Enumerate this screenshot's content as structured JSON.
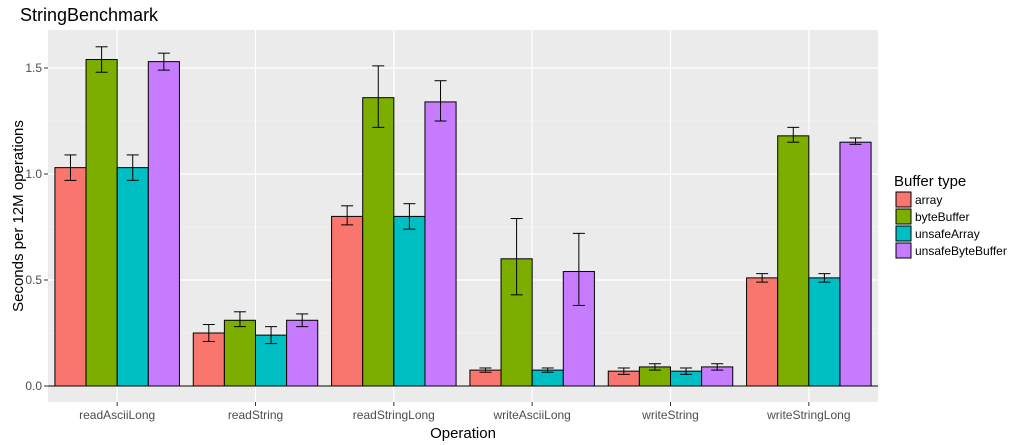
{
  "chart_data": {
    "type": "bar",
    "title": "StringBenchmark",
    "xlabel": "Operation",
    "ylabel": "Seconds per 12M operations",
    "ylim": [
      0,
      1.6
    ],
    "yticks": [
      "0.0",
      "0.5",
      "1.0",
      "1.5"
    ],
    "ytick_values": [
      0,
      0.5,
      1.0,
      1.5
    ],
    "categories": [
      "readAsciiLong",
      "readString",
      "readStringLong",
      "writeAsciiLong",
      "writeString",
      "writeStringLong"
    ],
    "legend_title": "Buffer type",
    "legend_position": "right",
    "grid": true,
    "series": [
      {
        "name": "array",
        "color": "#F8766D",
        "values": [
          1.03,
          0.25,
          0.8,
          0.075,
          0.07,
          0.51
        ],
        "err_low": [
          0.97,
          0.21,
          0.76,
          0.065,
          0.055,
          0.49
        ],
        "err_high": [
          1.09,
          0.29,
          0.85,
          0.085,
          0.085,
          0.53
        ]
      },
      {
        "name": "byteBuffer",
        "color": "#7CAE00",
        "values": [
          1.54,
          0.31,
          1.36,
          0.6,
          0.09,
          1.18
        ],
        "err_low": [
          1.48,
          0.28,
          1.22,
          0.43,
          0.075,
          1.15
        ],
        "err_high": [
          1.6,
          0.35,
          1.51,
          0.79,
          0.105,
          1.22
        ]
      },
      {
        "name": "unsafeArray",
        "color": "#00BFC4",
        "values": [
          1.03,
          0.24,
          0.8,
          0.075,
          0.07,
          0.51
        ],
        "err_low": [
          0.97,
          0.2,
          0.74,
          0.065,
          0.055,
          0.49
        ],
        "err_high": [
          1.09,
          0.28,
          0.86,
          0.085,
          0.085,
          0.53
        ]
      },
      {
        "name": "unsafeByteBuffer",
        "color": "#C77CFF",
        "values": [
          1.53,
          0.31,
          1.34,
          0.54,
          0.09,
          1.15
        ],
        "err_low": [
          1.49,
          0.28,
          1.25,
          0.38,
          0.075,
          1.14
        ],
        "err_high": [
          1.57,
          0.34,
          1.44,
          0.72,
          0.105,
          1.17
        ]
      }
    ]
  }
}
